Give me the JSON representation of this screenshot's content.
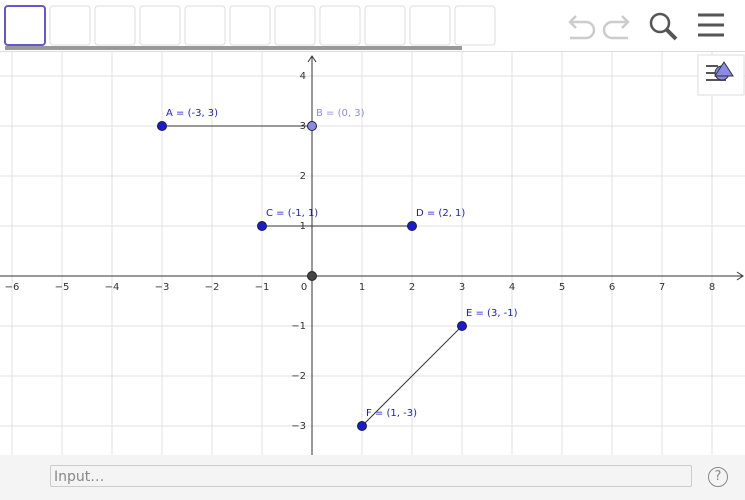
{
  "graph": {
    "xlim": [
      -6.24,
      8.66
    ],
    "ylim": [
      -3.58,
      4.48
    ],
    "xticks": [
      {
        "value": -6,
        "label": "−6"
      },
      {
        "value": -5,
        "label": "−5"
      },
      {
        "value": -4,
        "label": "−4"
      },
      {
        "value": -3,
        "label": "−3"
      },
      {
        "value": -2,
        "label": "−2"
      },
      {
        "value": -1,
        "label": "−1"
      },
      0,
      1,
      2,
      3,
      4,
      5,
      6,
      7,
      8
    ],
    "yticks": [
      {
        "value": -3,
        "label": "−3"
      },
      {
        "value": -2,
        "label": "−2"
      },
      {
        "value": -1,
        "label": "−1"
      },
      1,
      2,
      3,
      4
    ],
    "points": [
      {
        "label": "A = (-3, 3)",
        "x": -3,
        "y": 3,
        "color": "#1a1ad6"
      },
      {
        "label": "B = (0, 3)",
        "x": 0,
        "y": 3,
        "color": "#8a8ae8"
      },
      {
        "label": "C = (-1, 1)",
        "x": -1,
        "y": 1,
        "color": "#1a1ad6"
      },
      {
        "label": "D = (2, 1)",
        "x": 2,
        "y": 1,
        "color": "#1a1ad6"
      },
      {
        "label": "E = (3, -1)",
        "x": 3,
        "y": -1,
        "color": "#1a1ad6"
      },
      {
        "label": "F = (1, -3)",
        "x": 1,
        "y": -3,
        "color": "#1a1ad6"
      }
    ],
    "origin_point": {
      "x": 0,
      "y": 0,
      "color": "#444444"
    }
  },
  "input": {
    "placeholder": "Input…",
    "help": "?"
  }
}
